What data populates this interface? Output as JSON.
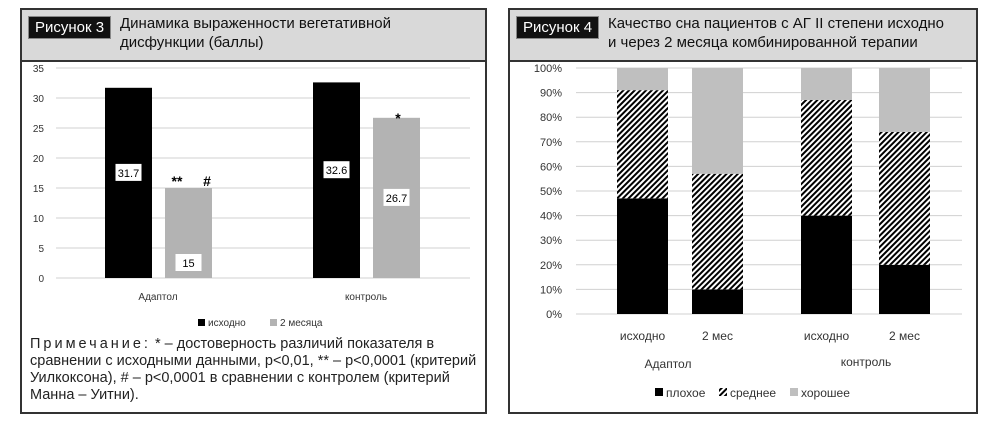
{
  "figure3": {
    "label": "Рисунок 3",
    "title_line1": "Динамика выраженности вегетативной",
    "title_line2": "дисфункции (баллы)",
    "note_lead": "Примечание:",
    "note_text": " * – достоверность различий показателя в сравнении с исходными данными, p<0,01, ** – p<0,0001 (критерий Уилкоксона), # – p<0,0001 в сравнении с контролем (критерий Манна – Уитни)."
  },
  "figure4": {
    "label": "Рисунок 4",
    "title_line1": "Качество сна пациентов с АГ II степени исходно",
    "title_line2": "и через 2 месяца комбинированной терапии"
  },
  "chart_data": [
    {
      "type": "bar",
      "ylim": [
        0,
        35
      ],
      "yticks": [
        "0",
        "5",
        "10",
        "15",
        "20",
        "25",
        "30",
        "35"
      ],
      "grid": true,
      "legend_position": "bottom",
      "categories": [
        "Адаптол",
        "контроль"
      ],
      "series": [
        {
          "name": "исходно",
          "color": "#000000",
          "values": [
            31.7,
            32.6
          ],
          "labels": [
            "31.7",
            "32.6"
          ]
        },
        {
          "name": "2 месяца",
          "color": "#b3b3b3",
          "values": [
            15,
            26.7
          ],
          "labels": [
            "15",
            "26.7"
          ]
        }
      ],
      "annotations": [
        {
          "category": "Адаптол",
          "series": "2 месяца",
          "text": "**"
        },
        {
          "category": "Адаптол",
          "series": "2 месяца",
          "text": "#"
        },
        {
          "category": "контроль",
          "series": "2 месяца",
          "text": "*"
        }
      ]
    },
    {
      "type": "bar",
      "stacked": "percent",
      "ylim": [
        0,
        100
      ],
      "yticks": [
        "0%",
        "10%",
        "20%",
        "30%",
        "40%",
        "50%",
        "60%",
        "70%",
        "80%",
        "90%",
        "100%"
      ],
      "grid": true,
      "legend_position": "bottom",
      "groups": [
        "Адаптол",
        "контроль"
      ],
      "categories": [
        "исходно",
        "2 мес",
        "исходно",
        "2 мес"
      ],
      "series": [
        {
          "name": "плохое",
          "color": "#000000",
          "pattern": "solid",
          "values": [
            47,
            10,
            40,
            20
          ]
        },
        {
          "name": "среднее",
          "color": "#000000",
          "pattern": "hatch",
          "values": [
            44,
            47,
            47,
            54
          ]
        },
        {
          "name": "хорошее",
          "color": "#bfbfbf",
          "pattern": "solid",
          "values": [
            9,
            43,
            13,
            26
          ]
        }
      ]
    }
  ]
}
